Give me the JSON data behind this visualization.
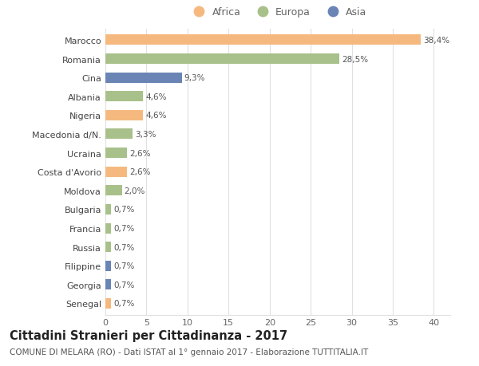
{
  "countries": [
    "Marocco",
    "Romania",
    "Cina",
    "Albania",
    "Nigeria",
    "Macedonia d/N.",
    "Ucraina",
    "Costa d'Avorio",
    "Moldova",
    "Bulgaria",
    "Francia",
    "Russia",
    "Filippine",
    "Georgia",
    "Senegal"
  ],
  "values": [
    38.4,
    28.5,
    9.3,
    4.6,
    4.6,
    3.3,
    2.6,
    2.6,
    2.0,
    0.7,
    0.7,
    0.7,
    0.7,
    0.7,
    0.7
  ],
  "labels": [
    "38,4%",
    "28,5%",
    "9,3%",
    "4,6%",
    "4,6%",
    "3,3%",
    "2,6%",
    "2,6%",
    "2,0%",
    "0,7%",
    "0,7%",
    "0,7%",
    "0,7%",
    "0,7%",
    "0,7%"
  ],
  "continents": [
    "Africa",
    "Europa",
    "Asia",
    "Europa",
    "Africa",
    "Europa",
    "Europa",
    "Africa",
    "Europa",
    "Europa",
    "Europa",
    "Europa",
    "Asia",
    "Asia",
    "Africa"
  ],
  "colors": {
    "Africa": "#F5B97F",
    "Europa": "#A8C08A",
    "Asia": "#6A85B5"
  },
  "legend_order": [
    "Africa",
    "Europa",
    "Asia"
  ],
  "title": "Cittadini Stranieri per Cittadinanza - 2017",
  "subtitle": "COMUNE DI MELARA (RO) - Dati ISTAT al 1° gennaio 2017 - Elaborazione TUTTITALIA.IT",
  "xlim": [
    0,
    42
  ],
  "xticks": [
    0,
    5,
    10,
    15,
    20,
    25,
    30,
    35,
    40
  ],
  "background_color": "#ffffff",
  "grid_color": "#e0e0e0",
  "bar_height": 0.55,
  "title_fontsize": 10.5,
  "subtitle_fontsize": 7.5,
  "label_fontsize": 7.5,
  "tick_fontsize": 8,
  "legend_fontsize": 9
}
